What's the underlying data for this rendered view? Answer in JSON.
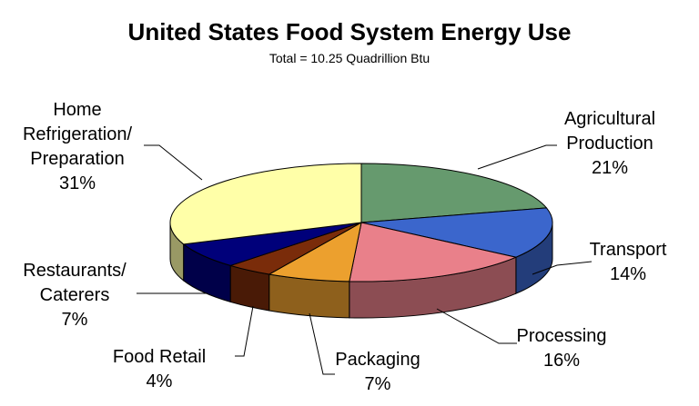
{
  "chart_data": {
    "type": "pie3d",
    "title": "United States Food System Energy Use",
    "subtitle": "Total = 10.25 Quadrillion Btu",
    "categories": [
      "Agricultural\nProduction",
      "Transport",
      "Processing",
      "Packaging",
      "Food Retail",
      "Restaurants/\nCaterers",
      "Home\nRefrigeration/\nPreparation"
    ],
    "values": [
      21,
      14,
      16,
      7,
      4,
      7,
      31
    ],
    "value_labels": [
      "21%",
      "14%",
      "16%",
      "7%",
      "4%",
      "7%",
      "31%"
    ],
    "colors": [
      "#669a6e",
      "#3b66cc",
      "#e9808a",
      "#eca02e",
      "#7a2c0a",
      "#00007a",
      "#ffffa8"
    ]
  }
}
